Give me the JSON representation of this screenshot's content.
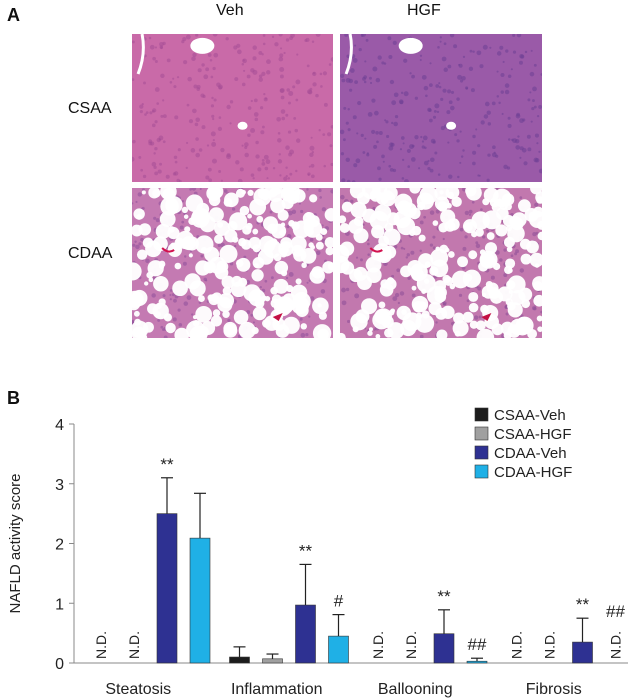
{
  "panel_a": {
    "letter": "A",
    "columns": [
      "Veh",
      "HGF"
    ],
    "rows": [
      "CSAA",
      "CDAA"
    ],
    "images": [
      {
        "name": "micrograph-csaa-veh",
        "kind": "normal",
        "bg": "#c96aa8",
        "cell": "#a44d96"
      },
      {
        "name": "micrograph-csaa-hgf",
        "kind": "normal",
        "bg": "#9a5aa8",
        "cell": "#6e3f94"
      },
      {
        "name": "micrograph-cdaa-veh",
        "kind": "steatosis",
        "bg": "#c47ab2",
        "cell": "#8e4f9b"
      },
      {
        "name": "micrograph-cdaa-hgf",
        "kind": "steatosis",
        "bg": "#c278ae",
        "cell": "#8c4c98"
      }
    ]
  },
  "panel_b": {
    "letter": "B"
  },
  "chart_data": {
    "type": "bar",
    "ylabel": "NAFLD activity score",
    "ylim": [
      0,
      4
    ],
    "yticks": [
      "0",
      "1",
      "2",
      "3",
      "4"
    ],
    "categories": [
      "Steatosis",
      "Inflammation",
      "Ballooning",
      "Fibrosis"
    ],
    "legend_position": "top-right",
    "series": [
      {
        "name": "CSAA-Veh",
        "color": "#1c1c1c",
        "values": [
          null,
          0.1,
          null,
          null
        ],
        "errors": [
          null,
          0.17,
          null,
          null
        ]
      },
      {
        "name": "CSAA-HGF",
        "color": "#a0a0a0",
        "values": [
          null,
          0.07,
          null,
          null
        ],
        "errors": [
          null,
          0.08,
          null,
          null
        ]
      },
      {
        "name": "CDAA-Veh",
        "color": "#2e3192",
        "values": [
          2.5,
          0.97,
          0.49,
          0.35
        ],
        "errors": [
          0.6,
          0.68,
          0.4,
          0.4
        ]
      },
      {
        "name": "CDAA-HGF",
        "color": "#1fb0e6",
        "values": [
          2.09,
          0.45,
          0.03,
          null
        ],
        "errors": [
          0.75,
          0.36,
          0.05,
          null
        ]
      }
    ],
    "nd_label": "N.D.",
    "nd_marks": [
      {
        "category": 0,
        "series": 0
      },
      {
        "category": 0,
        "series": 1
      },
      {
        "category": 2,
        "series": 0
      },
      {
        "category": 2,
        "series": 1
      },
      {
        "category": 3,
        "series": 0
      },
      {
        "category": 3,
        "series": 1
      },
      {
        "category": 3,
        "series": 3
      }
    ],
    "annotations": [
      {
        "category": 0,
        "series": 2,
        "text": "**"
      },
      {
        "category": 1,
        "series": 2,
        "text": "**"
      },
      {
        "category": 1,
        "series": 3,
        "text": "#"
      },
      {
        "category": 2,
        "series": 2,
        "text": "**"
      },
      {
        "category": 2,
        "series": 3,
        "text": "##"
      },
      {
        "category": 3,
        "series": 2,
        "text": "**"
      },
      {
        "category": 3,
        "series": 3,
        "text": "##"
      }
    ]
  }
}
